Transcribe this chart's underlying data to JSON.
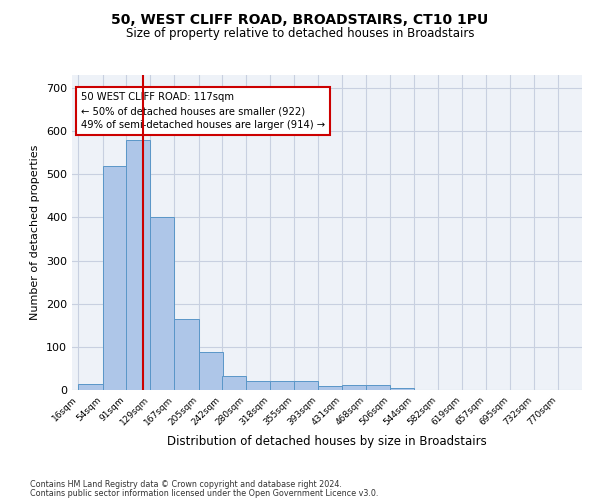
{
  "title1": "50, WEST CLIFF ROAD, BROADSTAIRS, CT10 1PU",
  "title2": "Size of property relative to detached houses in Broadstairs",
  "xlabel": "Distribution of detached houses by size in Broadstairs",
  "ylabel": "Number of detached properties",
  "bar_left_edges": [
    16,
    54,
    91,
    129,
    167,
    205,
    242,
    280,
    318,
    355,
    393,
    431,
    468,
    506,
    544,
    582,
    619,
    657,
    695,
    732
  ],
  "bar_heights": [
    13,
    520,
    580,
    400,
    165,
    88,
    32,
    20,
    22,
    20,
    10,
    12,
    12,
    5,
    0,
    0,
    0,
    0,
    0,
    0
  ],
  "bin_width": 38,
  "bar_color": "#aec6e8",
  "bar_edge_color": "#5a96c8",
  "property_line_x": 117,
  "property_line_color": "#cc0000",
  "annotation_line1": "50 WEST CLIFF ROAD: 117sqm",
  "annotation_line2": "← 50% of detached houses are smaller (922)",
  "annotation_line3": "49% of semi-detached houses are larger (914) →",
  "annotation_box_color": "#ffffff",
  "annotation_box_edge_color": "#cc0000",
  "ylim": [
    0,
    730
  ],
  "yticks": [
    0,
    100,
    200,
    300,
    400,
    500,
    600,
    700
  ],
  "x_labels": [
    "16sqm",
    "54sqm",
    "91sqm",
    "129sqm",
    "167sqm",
    "205sqm",
    "242sqm",
    "280sqm",
    "318sqm",
    "355sqm",
    "393sqm",
    "431sqm",
    "468sqm",
    "506sqm",
    "544sqm",
    "582sqm",
    "619sqm",
    "657sqm",
    "695sqm",
    "732sqm",
    "770sqm"
  ],
  "footer1": "Contains HM Land Registry data © Crown copyright and database right 2024.",
  "footer2": "Contains public sector information licensed under the Open Government Licence v3.0.",
  "bg_color": "#eef2f8",
  "grid_color": "#c8d0e0",
  "fig_width": 6.0,
  "fig_height": 5.0,
  "dpi": 100
}
